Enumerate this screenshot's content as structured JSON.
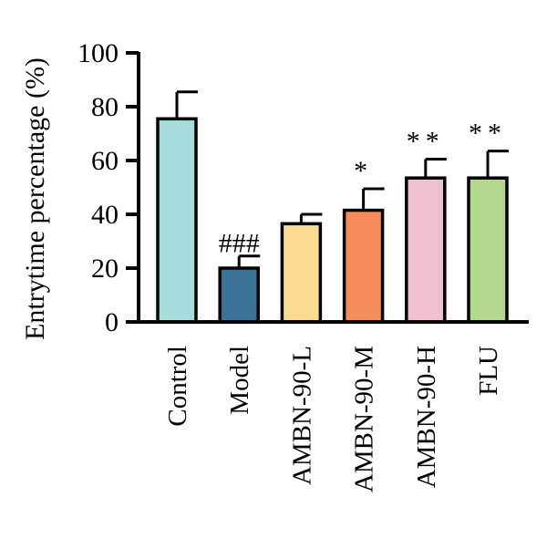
{
  "chart_data": {
    "type": "bar",
    "title": "",
    "xlabel": "",
    "ylabel": "Entrytime percentage (%)",
    "ylim": [
      0,
      100
    ],
    "yticks": [
      0,
      20,
      40,
      60,
      80,
      100
    ],
    "grid": false,
    "legend": "none",
    "categories": [
      "Control",
      "Model",
      "AMBN-90-L",
      "AMBN-90-M",
      "AMBN-90-H",
      "FLU"
    ],
    "values": [
      75.5,
      20.0,
      36.5,
      41.5,
      53.5,
      53.5
    ],
    "error_upper": [
      85.5,
      24.5,
      40.0,
      49.5,
      60.5,
      63.5
    ],
    "annotations": [
      "",
      "###",
      "",
      "*",
      "**",
      "**"
    ],
    "colors": [
      "#a7dcdc",
      "#3a7396",
      "#fbdb8f",
      "#f58c5a",
      "#efbfd2",
      "#b2d78e"
    ]
  }
}
